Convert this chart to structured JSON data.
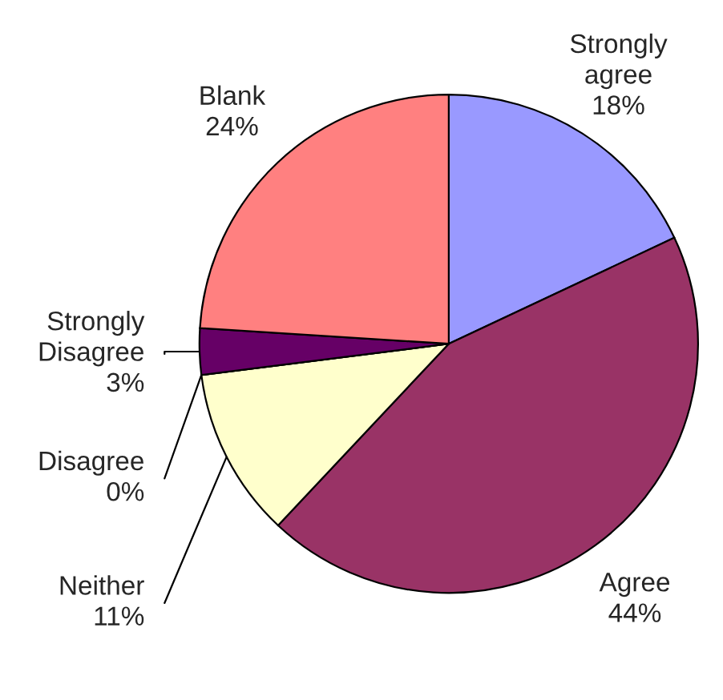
{
  "chart_data": {
    "type": "pie",
    "categories": [
      "Strongly agree",
      "Agree",
      "Neither",
      "Disagree",
      "Strongly Disagree",
      "Blank"
    ],
    "values": [
      18,
      44,
      11,
      0,
      3,
      24
    ],
    "value_labels": [
      "18%",
      "44%",
      "11%",
      "0%",
      "3%",
      "24%"
    ],
    "colors": [
      "#9999ff",
      "#993366",
      "#ffffcc",
      "#ccffff",
      "#660066",
      "#ff8080"
    ],
    "legend": false
  }
}
